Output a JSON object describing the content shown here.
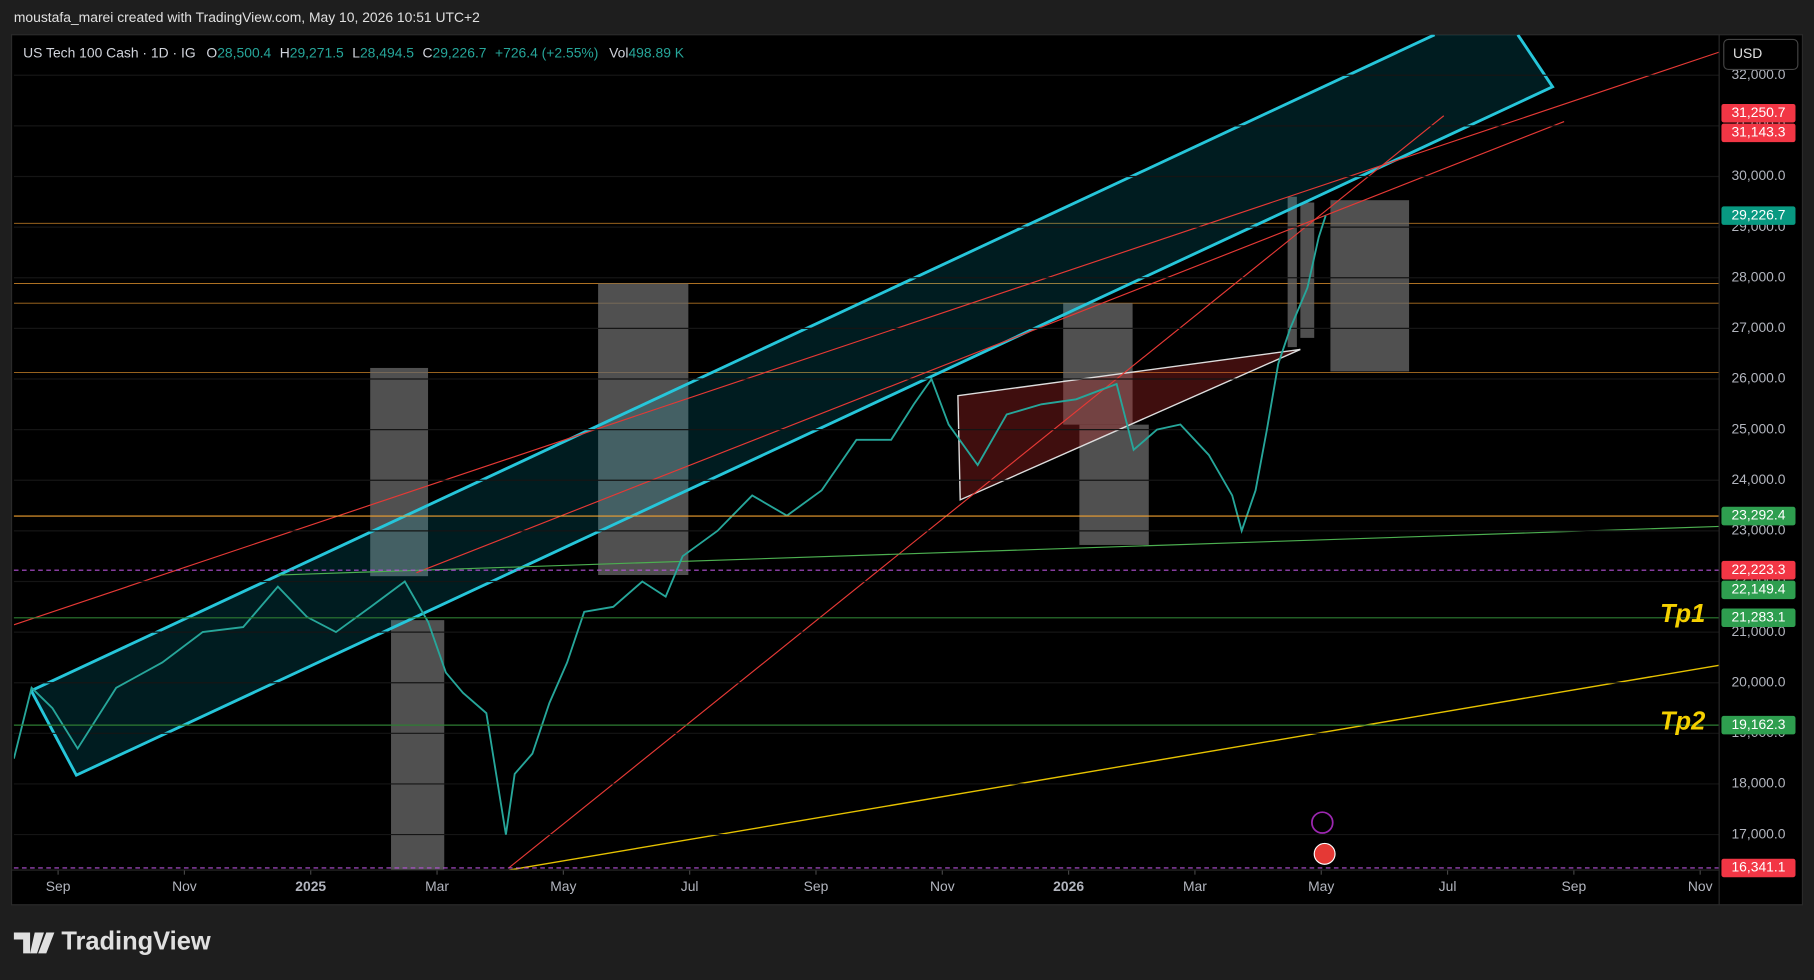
{
  "header": {
    "credit": "moustafa_marei created with TradingView.com, May 10, 2026 10:51 UTC+2"
  },
  "footer": {
    "brand": "TradingView"
  },
  "chart_data": {
    "type": "line",
    "legend": {
      "symbol": "US Tech 100 Cash · 1D · IG",
      "ohlc": [
        {
          "key": "O",
          "text": "28,500.4"
        },
        {
          "key": "H",
          "text": "29,271.5"
        },
        {
          "key": "L",
          "text": "28,494.5"
        },
        {
          "key": "C",
          "text": "29,226.7"
        }
      ],
      "change": "+726.4 (+2.55%)",
      "volume": {
        "key": "Vol",
        "text": "498.89 K"
      }
    },
    "currency": "USD",
    "series": [
      {
        "name": "US Tech 100 Cash",
        "color": "#26a69a",
        "x": [
          -0.7,
          -0.42,
          -0.09,
          0.31,
          0.92,
          1.65,
          2.29,
          2.93,
          3.48,
          3.94,
          4.4,
          4.95,
          5.49,
          5.86,
          6.14,
          6.41,
          6.78,
          7.09,
          7.23,
          7.51,
          7.78,
          8.06,
          8.33,
          8.79,
          9.25,
          9.62,
          9.89,
          10.44,
          10.99,
          11.54,
          12.09,
          12.64,
          13.19,
          13.55,
          13.83,
          14.1,
          14.56,
          15.02,
          15.57,
          16.12,
          16.76,
          17.03,
          17.4,
          17.77,
          18.22,
          18.59,
          18.74,
          18.96,
          19.14,
          19.32,
          19.51,
          19.78,
          19.96,
          20.07
        ],
        "values": [
          18500,
          19900,
          19500,
          18700,
          19900,
          20400,
          21000,
          21100,
          21900,
          21300,
          21000,
          21500,
          22000,
          21200,
          20200,
          19800,
          19400,
          17000,
          18200,
          18600,
          19600,
          20400,
          21400,
          21500,
          22000,
          21700,
          22500,
          23000,
          23700,
          23300,
          23800,
          24800,
          24800,
          25500,
          26000,
          25100,
          24300,
          25300,
          25500,
          25600,
          25900,
          24600,
          25000,
          25100,
          24500,
          23700,
          23000,
          23800,
          25000,
          26300,
          27000,
          27800,
          28800,
          29226.7
        ]
      }
    ],
    "xlim": [
      -0.7,
      26.3
    ],
    "xticks": [
      {
        "value": 0,
        "label": "Sep"
      },
      {
        "value": 2,
        "label": "Nov"
      },
      {
        "value": 4,
        "label": "2025"
      },
      {
        "value": 6,
        "label": "Mar"
      },
      {
        "value": 8,
        "label": "May"
      },
      {
        "value": 10,
        "label": "Jul"
      },
      {
        "value": 12,
        "label": "Sep"
      },
      {
        "value": 14,
        "label": "Nov"
      },
      {
        "value": 16,
        "label": "2026"
      },
      {
        "value": 18,
        "label": "Mar"
      },
      {
        "value": 20,
        "label": "May"
      },
      {
        "value": 22,
        "label": "Jul"
      },
      {
        "value": 24,
        "label": "Sep"
      },
      {
        "value": 26,
        "label": "Nov"
      }
    ],
    "ylim": [
      16300,
      32800
    ],
    "yticks": [
      {
        "value": 17000,
        "label": "17,000.0"
      },
      {
        "value": 18000,
        "label": "18,000.0"
      },
      {
        "value": 19000,
        "label": "19,000.0"
      },
      {
        "value": 20000,
        "label": "20,000.0"
      },
      {
        "value": 21000,
        "label": "21,000.0"
      },
      {
        "value": 22000,
        "label": "22,000.0"
      },
      {
        "value": 23000,
        "label": "23,000.0"
      },
      {
        "value": 24000,
        "label": "24,000.0"
      },
      {
        "value": 25000,
        "label": "25,000.0"
      },
      {
        "value": 26000,
        "label": "26,000.0"
      },
      {
        "value": 27000,
        "label": "27,000.0"
      },
      {
        "value": 28000,
        "label": "28,000.0"
      },
      {
        "value": 29000,
        "label": "29,000.0"
      },
      {
        "value": 30000,
        "label": "30,000.0"
      },
      {
        "value": 31000,
        "label": "31,000.0"
      },
      {
        "value": 32000,
        "label": "32,000.0"
      }
    ],
    "price_labels": [
      {
        "value": 31250.7,
        "label": "31,250.7",
        "color": "#f23645"
      },
      {
        "value": 31143.3,
        "label": "31,143.3",
        "color": "#f23645"
      },
      {
        "value": 29226.7,
        "label": "29,226.7",
        "color": "#089981"
      },
      {
        "value": 23292.4,
        "label": "23,292.4",
        "color": "#2e9e4f",
        "line": "#f0a030"
      },
      {
        "value": 22223.3,
        "label": "22,223.3",
        "color": "#f23645",
        "line": "#b452d6",
        "dashed": true
      },
      {
        "value": 22149.4,
        "label": "22,149.4",
        "color": "#2e9e4f"
      },
      {
        "value": 21283.1,
        "label": "21,283.1",
        "color": "#2e9e4f",
        "line": "#2e7d32",
        "annotation": "Tp1"
      },
      {
        "value": 19162.3,
        "label": "19,162.3",
        "color": "#2e9e4f",
        "line": "#2e7d32",
        "annotation": "Tp2"
      },
      {
        "value": 16341.1,
        "label": "16,341.1",
        "color": "#f23645",
        "line": "#b452d6",
        "dashed": true
      }
    ]
  }
}
